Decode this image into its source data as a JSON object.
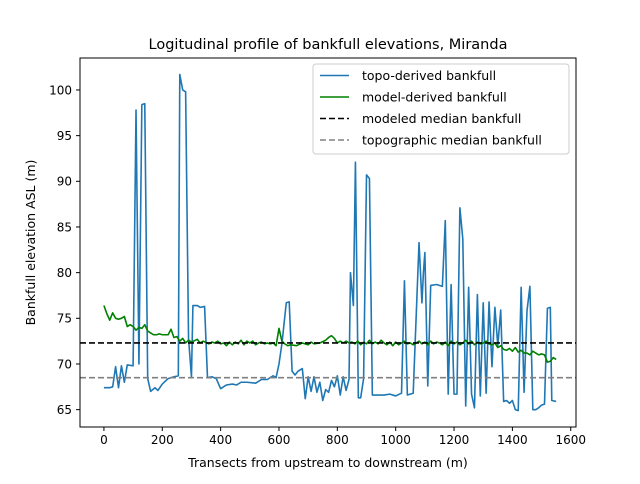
{
  "chart_data": {
    "type": "line",
    "title": "Logitudinal profile of bankfull elevations, Miranda",
    "xlabel": "Transects from upstream to downstream (m)",
    "ylabel": "Bankfull elevation ASL (m)",
    "xlim": [
      -82,
      1618
    ],
    "ylim": [
      63.1,
      103.5
    ],
    "xticks": [
      0,
      200,
      400,
      600,
      800,
      1000,
      1200,
      1400,
      1600
    ],
    "yticks": [
      65,
      70,
      75,
      80,
      85,
      90,
      95,
      100
    ],
    "grid": false,
    "legend_position": "upper-right",
    "series": [
      {
        "name": "topo-derived bankfull",
        "color": "#1f77b4",
        "style": "solid",
        "points": [
          [
            0,
            67.4
          ],
          [
            20,
            67.4
          ],
          [
            30,
            67.5
          ],
          [
            40,
            69.7
          ],
          [
            50,
            67.4
          ],
          [
            60,
            69.8
          ],
          [
            70,
            68.0
          ],
          [
            80,
            69.9
          ],
          [
            100,
            69.8
          ],
          [
            110,
            97.8
          ],
          [
            120,
            70.0
          ],
          [
            130,
            98.4
          ],
          [
            140,
            98.5
          ],
          [
            150,
            68.4
          ],
          [
            160,
            67.0
          ],
          [
            175,
            67.4
          ],
          [
            185,
            67.1
          ],
          [
            200,
            67.8
          ],
          [
            220,
            68.4
          ],
          [
            240,
            68.6
          ],
          [
            255,
            68.7
          ],
          [
            260,
            101.7
          ],
          [
            270,
            100.0
          ],
          [
            280,
            99.8
          ],
          [
            290,
            72.8
          ],
          [
            300,
            68.6
          ],
          [
            305,
            76.4
          ],
          [
            320,
            76.4
          ],
          [
            330,
            76.2
          ],
          [
            345,
            76.3
          ],
          [
            355,
            68.5
          ],
          [
            370,
            68.6
          ],
          [
            385,
            68.4
          ],
          [
            400,
            67.3
          ],
          [
            420,
            67.7
          ],
          [
            440,
            67.8
          ],
          [
            455,
            67.7
          ],
          [
            470,
            68.0
          ],
          [
            490,
            68.0
          ],
          [
            520,
            67.9
          ],
          [
            540,
            68.3
          ],
          [
            560,
            68.3
          ],
          [
            580,
            68.7
          ],
          [
            590,
            68.5
          ],
          [
            600,
            70.0
          ],
          [
            610,
            72.2
          ],
          [
            625,
            76.7
          ],
          [
            635,
            76.8
          ],
          [
            645,
            69.2
          ],
          [
            655,
            68.8
          ],
          [
            665,
            69.2
          ],
          [
            680,
            69.5
          ],
          [
            690,
            66.2
          ],
          [
            700,
            68.6
          ],
          [
            710,
            67.0
          ],
          [
            720,
            68.6
          ],
          [
            730,
            66.9
          ],
          [
            740,
            68.0
          ],
          [
            750,
            66.0
          ],
          [
            760,
            67.2
          ],
          [
            770,
            66.9
          ],
          [
            780,
            68.2
          ],
          [
            790,
            67.5
          ],
          [
            800,
            68.7
          ],
          [
            810,
            66.6
          ],
          [
            820,
            68.6
          ],
          [
            830,
            67.1
          ],
          [
            840,
            68.3
          ],
          [
            845,
            80.0
          ],
          [
            855,
            76.4
          ],
          [
            862,
            92.1
          ],
          [
            872,
            66.3
          ],
          [
            880,
            66.3
          ],
          [
            890,
            68.4
          ],
          [
            900,
            90.7
          ],
          [
            910,
            90.3
          ],
          [
            920,
            66.6
          ],
          [
            940,
            66.6
          ],
          [
            960,
            66.6
          ],
          [
            980,
            66.7
          ],
          [
            1000,
            66.5
          ],
          [
            1020,
            66.8
          ],
          [
            1030,
            79.1
          ],
          [
            1040,
            66.6
          ],
          [
            1060,
            66.8
          ],
          [
            1080,
            83.3
          ],
          [
            1090,
            76.7
          ],
          [
            1095,
            80.0
          ],
          [
            1100,
            82.2
          ],
          [
            1110,
            67.6
          ],
          [
            1120,
            78.6
          ],
          [
            1140,
            78.7
          ],
          [
            1160,
            78.5
          ],
          [
            1170,
            85.7
          ],
          [
            1180,
            66.7
          ],
          [
            1190,
            78.7
          ],
          [
            1200,
            66.7
          ],
          [
            1210,
            66.7
          ],
          [
            1220,
            87.1
          ],
          [
            1230,
            83.7
          ],
          [
            1240,
            65.4
          ],
          [
            1250,
            78.4
          ],
          [
            1260,
            66.7
          ],
          [
            1270,
            65.2
          ],
          [
            1280,
            77.6
          ],
          [
            1290,
            66.5
          ],
          [
            1300,
            76.7
          ],
          [
            1310,
            66.8
          ],
          [
            1320,
            76.8
          ],
          [
            1330,
            69.7
          ],
          [
            1340,
            76.2
          ],
          [
            1350,
            72.0
          ],
          [
            1360,
            75.9
          ],
          [
            1370,
            65.9
          ],
          [
            1380,
            66.0
          ],
          [
            1390,
            65.7
          ],
          [
            1400,
            66.0
          ],
          [
            1410,
            65.0
          ],
          [
            1420,
            64.9
          ],
          [
            1430,
            78.4
          ],
          [
            1440,
            66.9
          ],
          [
            1450,
            75.8
          ],
          [
            1460,
            78.5
          ],
          [
            1470,
            65.0
          ],
          [
            1480,
            65.0
          ],
          [
            1490,
            65.2
          ],
          [
            1500,
            65.5
          ],
          [
            1510,
            65.6
          ],
          [
            1520,
            76.1
          ],
          [
            1530,
            76.2
          ],
          [
            1535,
            66.0
          ],
          [
            1550,
            65.9
          ]
        ]
      },
      {
        "name": "model-derived bankfull",
        "color": "#008000",
        "style": "solid",
        "points": [
          [
            0,
            76.4
          ],
          [
            10,
            75.5
          ],
          [
            20,
            74.8
          ],
          [
            30,
            75.6
          ],
          [
            40,
            75.0
          ],
          [
            50,
            74.9
          ],
          [
            60,
            75.0
          ],
          [
            70,
            75.2
          ],
          [
            80,
            74.1
          ],
          [
            90,
            74.3
          ],
          [
            100,
            74.1
          ],
          [
            110,
            73.7
          ],
          [
            120,
            74.0
          ],
          [
            130,
            73.9
          ],
          [
            140,
            74.3
          ],
          [
            150,
            73.6
          ],
          [
            160,
            73.4
          ],
          [
            170,
            73.2
          ],
          [
            180,
            73.2
          ],
          [
            190,
            73.3
          ],
          [
            200,
            73.2
          ],
          [
            220,
            73.2
          ],
          [
            230,
            73.8
          ],
          [
            240,
            72.9
          ],
          [
            250,
            73.0
          ],
          [
            260,
            72.5
          ],
          [
            270,
            72.8
          ],
          [
            280,
            72.3
          ],
          [
            290,
            72.6
          ],
          [
            300,
            72.4
          ],
          [
            320,
            72.7
          ],
          [
            330,
            72.3
          ],
          [
            340,
            72.5
          ],
          [
            360,
            72.2
          ],
          [
            370,
            72.4
          ],
          [
            380,
            72.3
          ],
          [
            390,
            72.5
          ],
          [
            400,
            72.2
          ],
          [
            410,
            72.3
          ],
          [
            420,
            72.0
          ],
          [
            430,
            72.4
          ],
          [
            440,
            72.1
          ],
          [
            450,
            72.4
          ],
          [
            460,
            72.2
          ],
          [
            470,
            72.6
          ],
          [
            480,
            72.1
          ],
          [
            490,
            72.5
          ],
          [
            500,
            72.3
          ],
          [
            510,
            72.5
          ],
          [
            520,
            72.1
          ],
          [
            530,
            72.3
          ],
          [
            540,
            72.4
          ],
          [
            550,
            72.2
          ],
          [
            560,
            72.3
          ],
          [
            570,
            72.2
          ],
          [
            580,
            72.3
          ],
          [
            590,
            72.0
          ],
          [
            600,
            73.9
          ],
          [
            610,
            72.5
          ],
          [
            620,
            72.2
          ],
          [
            630,
            72.0
          ],
          [
            640,
            72.1
          ],
          [
            660,
            72.0
          ],
          [
            680,
            72.3
          ],
          [
            700,
            72.1
          ],
          [
            710,
            72.4
          ],
          [
            720,
            72.2
          ],
          [
            740,
            72.3
          ],
          [
            760,
            72.6
          ],
          [
            770,
            72.9
          ],
          [
            780,
            73.1
          ],
          [
            790,
            72.8
          ],
          [
            800,
            72.3
          ],
          [
            810,
            72.5
          ],
          [
            820,
            72.3
          ],
          [
            830,
            72.5
          ],
          [
            840,
            72.3
          ],
          [
            850,
            72.4
          ],
          [
            860,
            72.2
          ],
          [
            870,
            72.5
          ],
          [
            880,
            72.1
          ],
          [
            890,
            72.4
          ],
          [
            900,
            72.2
          ],
          [
            910,
            72.6
          ],
          [
            920,
            72.2
          ],
          [
            930,
            72.4
          ],
          [
            940,
            72.2
          ],
          [
            950,
            72.6
          ],
          [
            960,
            72.3
          ],
          [
            970,
            72.1
          ],
          [
            980,
            72.4
          ],
          [
            990,
            72.0
          ],
          [
            1000,
            72.4
          ],
          [
            1010,
            72.1
          ],
          [
            1020,
            72.3
          ],
          [
            1030,
            72.5
          ],
          [
            1040,
            72.2
          ],
          [
            1050,
            72.3
          ],
          [
            1060,
            72.1
          ],
          [
            1080,
            72.5
          ],
          [
            1090,
            72.2
          ],
          [
            1100,
            72.4
          ],
          [
            1110,
            72.1
          ],
          [
            1120,
            72.5
          ],
          [
            1130,
            72.2
          ],
          [
            1140,
            72.4
          ],
          [
            1150,
            72.3
          ],
          [
            1160,
            72.1
          ],
          [
            1170,
            72.4
          ],
          [
            1180,
            72.0
          ],
          [
            1190,
            72.5
          ],
          [
            1200,
            72.2
          ],
          [
            1210,
            72.4
          ],
          [
            1220,
            72.1
          ],
          [
            1230,
            72.3
          ],
          [
            1240,
            72.6
          ],
          [
            1250,
            72.2
          ],
          [
            1260,
            72.5
          ],
          [
            1270,
            72.1
          ],
          [
            1280,
            72.4
          ],
          [
            1290,
            72.2
          ],
          [
            1300,
            72.3
          ],
          [
            1310,
            72.5
          ],
          [
            1320,
            72.2
          ],
          [
            1330,
            72.1
          ],
          [
            1340,
            72.3
          ],
          [
            1350,
            71.8
          ],
          [
            1360,
            72.0
          ],
          [
            1370,
            71.6
          ],
          [
            1380,
            71.5
          ],
          [
            1390,
            71.7
          ],
          [
            1400,
            71.4
          ],
          [
            1410,
            71.8
          ],
          [
            1420,
            71.3
          ],
          [
            1430,
            71.5
          ],
          [
            1440,
            71.2
          ],
          [
            1450,
            71.2
          ],
          [
            1460,
            71.0
          ],
          [
            1470,
            71.4
          ],
          [
            1480,
            71.2
          ],
          [
            1490,
            71.0
          ],
          [
            1500,
            71.1
          ],
          [
            1510,
            71.0
          ],
          [
            1520,
            70.2
          ],
          [
            1530,
            70.3
          ],
          [
            1540,
            70.7
          ],
          [
            1550,
            70.5
          ]
        ]
      },
      {
        "name": "modeled median bankfull",
        "color": "#000000",
        "style": "dashed",
        "value": 72.3
      },
      {
        "name": "topographic median bankfull",
        "color": "#808080",
        "style": "dashed",
        "value": 68.5
      }
    ]
  }
}
